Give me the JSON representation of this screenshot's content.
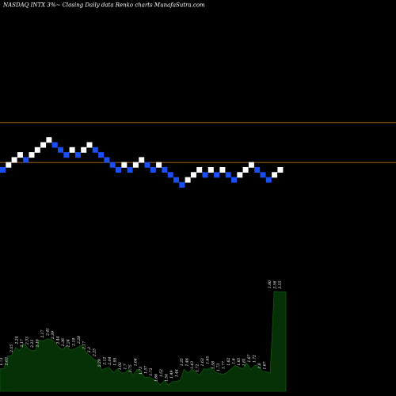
{
  "header": {
    "title": "NASDAQ INTX  3%~  Closing Daily data  Renko  charts MunafaSutra.com"
  },
  "colors": {
    "background": "#000000",
    "up_brick": "#ffffff",
    "down_brick": "#1a4ff5",
    "ref_line": "#b8741a",
    "volume_fill": "#063006",
    "volume_edge": "#0f5a0f"
  },
  "chart_data": [
    {
      "type": "renko",
      "title": "NASDAQ INTX  3%~  Closing Daily data  Renko  charts MunafaSutra.com",
      "brick_size_pct": 3,
      "reference_levels": [
        1,
        9
      ],
      "bricks": [
        {
          "dir": "down",
          "level": 0
        },
        {
          "dir": "up",
          "level": 1
        },
        {
          "dir": "up",
          "level": 2
        },
        {
          "dir": "up",
          "level": 3
        },
        {
          "dir": "down",
          "level": 2
        },
        {
          "dir": "up",
          "level": 3
        },
        {
          "dir": "up",
          "level": 4
        },
        {
          "dir": "up",
          "level": 5
        },
        {
          "dir": "up",
          "level": 6
        },
        {
          "dir": "down",
          "level": 5
        },
        {
          "dir": "down",
          "level": 4
        },
        {
          "dir": "down",
          "level": 3
        },
        {
          "dir": "up",
          "level": 4
        },
        {
          "dir": "down",
          "level": 3
        },
        {
          "dir": "up",
          "level": 4
        },
        {
          "dir": "up",
          "level": 5
        },
        {
          "dir": "down",
          "level": 4
        },
        {
          "dir": "down",
          "level": 3
        },
        {
          "dir": "down",
          "level": 2
        },
        {
          "dir": "down",
          "level": 1
        },
        {
          "dir": "down",
          "level": 0
        },
        {
          "dir": "up",
          "level": 1
        },
        {
          "dir": "down",
          "level": 0
        },
        {
          "dir": "up",
          "level": 1
        },
        {
          "dir": "up",
          "level": 2
        },
        {
          "dir": "down",
          "level": 1
        },
        {
          "dir": "down",
          "level": 0
        },
        {
          "dir": "up",
          "level": 1
        },
        {
          "dir": "down",
          "level": 0
        },
        {
          "dir": "down",
          "level": -1
        },
        {
          "dir": "down",
          "level": -2
        },
        {
          "dir": "down",
          "level": -3
        },
        {
          "dir": "up",
          "level": -2
        },
        {
          "dir": "up",
          "level": -1
        },
        {
          "dir": "up",
          "level": 0
        },
        {
          "dir": "down",
          "level": -1
        },
        {
          "dir": "up",
          "level": 0
        },
        {
          "dir": "down",
          "level": -1
        },
        {
          "dir": "up",
          "level": 0
        },
        {
          "dir": "down",
          "level": -1
        },
        {
          "dir": "down",
          "level": -2
        },
        {
          "dir": "up",
          "level": -1
        },
        {
          "dir": "up",
          "level": 0
        },
        {
          "dir": "up",
          "level": 1
        },
        {
          "dir": "down",
          "level": 0
        },
        {
          "dir": "down",
          "level": -1
        },
        {
          "dir": "down",
          "level": -2
        },
        {
          "dir": "up",
          "level": -1
        },
        {
          "dir": "up",
          "level": 0
        }
      ]
    },
    {
      "type": "area",
      "series": [
        {
          "values": [
            1.73,
            1.74,
            2.03,
            2.05,
            2.24,
            2.17,
            2.33,
            2.23,
            2.16,
            2.17,
            2.41,
            2.39,
            2.44,
            2.43,
            2.36,
            2.24,
            2.19,
            2.28,
            2.17,
            2.2,
            2.25,
            2.29,
            2.12,
            2.04,
            1.95,
            1.92,
            1.7,
            1.75,
            1.75,
            1.64,
            1.73,
            1.63,
            1.64,
            1.73,
            1.57,
            1.72,
            1.66,
            1.52,
            1.54,
            1.49,
            1.44,
            1.35,
            1.46,
            1.35,
            1.43,
            1.43,
            1.46,
            1.72,
            1.63,
            1.72,
            1.65,
            1.58,
            1.73,
            1.72,
            1.77,
            1.65,
            1.62,
            1.6,
            1.65,
            1.73,
            1.81,
            1.77,
            1.73,
            1.87,
            1.72,
            1.81,
            1.8,
            1.67,
            1.66,
            1.64,
            3.56,
            3.55,
            3.55,
            3.55
          ]
        }
      ],
      "data_labels": [
        "1.73",
        "2.03",
        "2.05",
        "2.24",
        "2.17",
        "2.33",
        "2.23",
        "2.16",
        "2.17",
        "2.41",
        "2.39",
        "2.44",
        "2.36",
        "2.24",
        "2.19",
        "2.28",
        "2.17",
        "2.2",
        "2.25",
        "2.29",
        "2.12",
        "2.04",
        "1.95",
        "1.92",
        "1.7",
        "1.75",
        "1.64",
        "1.73",
        "1.57",
        "1.72",
        "1.66",
        "1.52",
        "1.54",
        "1.49",
        "1.44",
        "1.35",
        "1.46",
        "1.43",
        "1.72",
        "1.63",
        "1.65",
        "1.58",
        "1.73",
        "1.77",
        "1.62",
        "1.6",
        "1.65",
        "1.81",
        "1.87",
        "1.72",
        "1.8",
        "1.67",
        "1.66",
        "3.56",
        "3.55"
      ]
    }
  ]
}
